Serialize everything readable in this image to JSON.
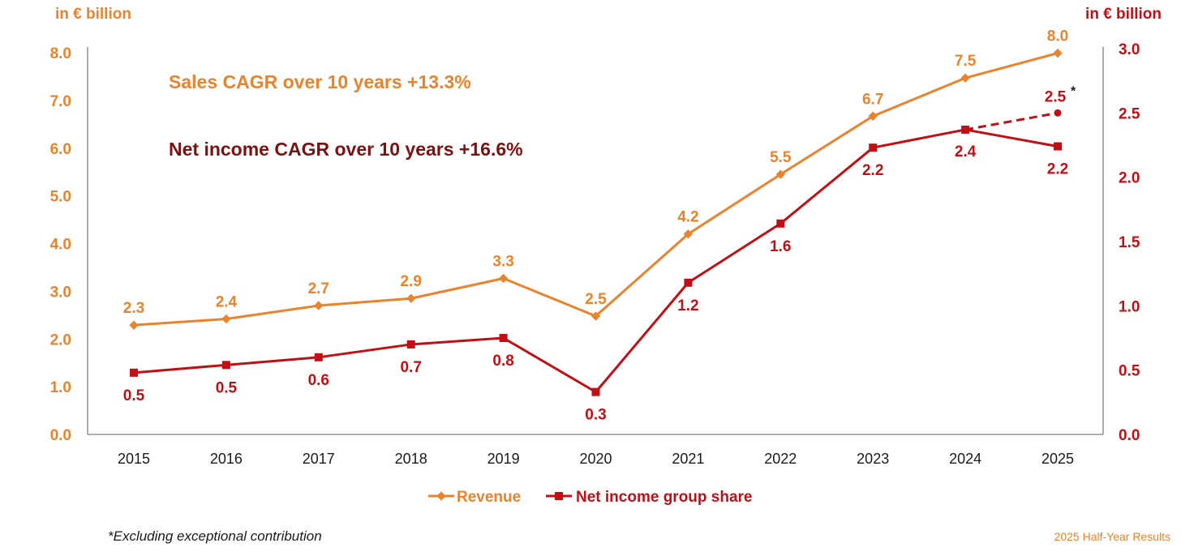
{
  "colors": {
    "revenue": "#E8832E",
    "net_income": "#C00F15",
    "net_income_dark": "#7A1212",
    "axis": "#7f7f7f",
    "text": "#1a1a1a"
  },
  "chart_data": {
    "type": "line",
    "categories": [
      "2015",
      "2016",
      "2017",
      "2018",
      "2019",
      "2020",
      "2021",
      "2022",
      "2023",
      "2024",
      "2025"
    ],
    "series": [
      {
        "name": "Revenue",
        "axis": "left",
        "values": [
          2.3,
          2.4,
          2.7,
          2.9,
          3.3,
          2.5,
          4.2,
          5.5,
          6.7,
          7.5,
          8.0
        ],
        "labels": [
          "2.3",
          "2.4",
          "2.7",
          "2.9",
          "3.3",
          "2.5",
          "4.2",
          "5.5",
          "6.7",
          "7.5",
          "8.0"
        ],
        "plot_values": [
          2.29,
          2.42,
          2.7,
          2.85,
          3.27,
          2.48,
          4.2,
          5.45,
          6.67,
          7.47,
          7.99
        ]
      },
      {
        "name": "Net income group share",
        "axis": "right",
        "values": [
          0.5,
          0.5,
          0.6,
          0.7,
          0.8,
          0.3,
          1.2,
          1.6,
          2.2,
          2.4,
          2.2
        ],
        "labels": [
          "0.5",
          "0.5",
          "0.6",
          "0.7",
          "0.8",
          "0.3",
          "1.2",
          "1.6",
          "2.2",
          "2.4",
          "2.2"
        ],
        "plot_values": [
          0.48,
          0.54,
          0.6,
          0.7,
          0.75,
          0.33,
          1.18,
          1.64,
          2.23,
          2.37,
          2.24
        ]
      }
    ],
    "projection": {
      "from_category": "2024",
      "to_category": "2025",
      "value": 2.5,
      "plot_value": 2.5,
      "label": "2.5",
      "note_mark": "*"
    },
    "left_axis": {
      "label": "in € billion",
      "min": 0,
      "max": 8,
      "ticks": [
        "0.0",
        "1.0",
        "2.0",
        "3.0",
        "4.0",
        "5.0",
        "6.0",
        "7.0",
        "8.0"
      ]
    },
    "right_axis": {
      "label": "in € billion",
      "min": 0,
      "max": 3,
      "ticks": [
        "0.0",
        "0.5",
        "1.0",
        "1.5",
        "2.0",
        "2.5",
        "3.0"
      ]
    },
    "annotations": {
      "sales_cagr": "Sales CAGR over 10 years +13.3%",
      "net_income_cagr": "Net income CAGR over 10 years +16.6%"
    },
    "legend": [
      "Revenue",
      "Net income group share"
    ]
  },
  "footnote": "*Excluding exceptional contribution",
  "footer_label": "2025 Half-Year Results"
}
